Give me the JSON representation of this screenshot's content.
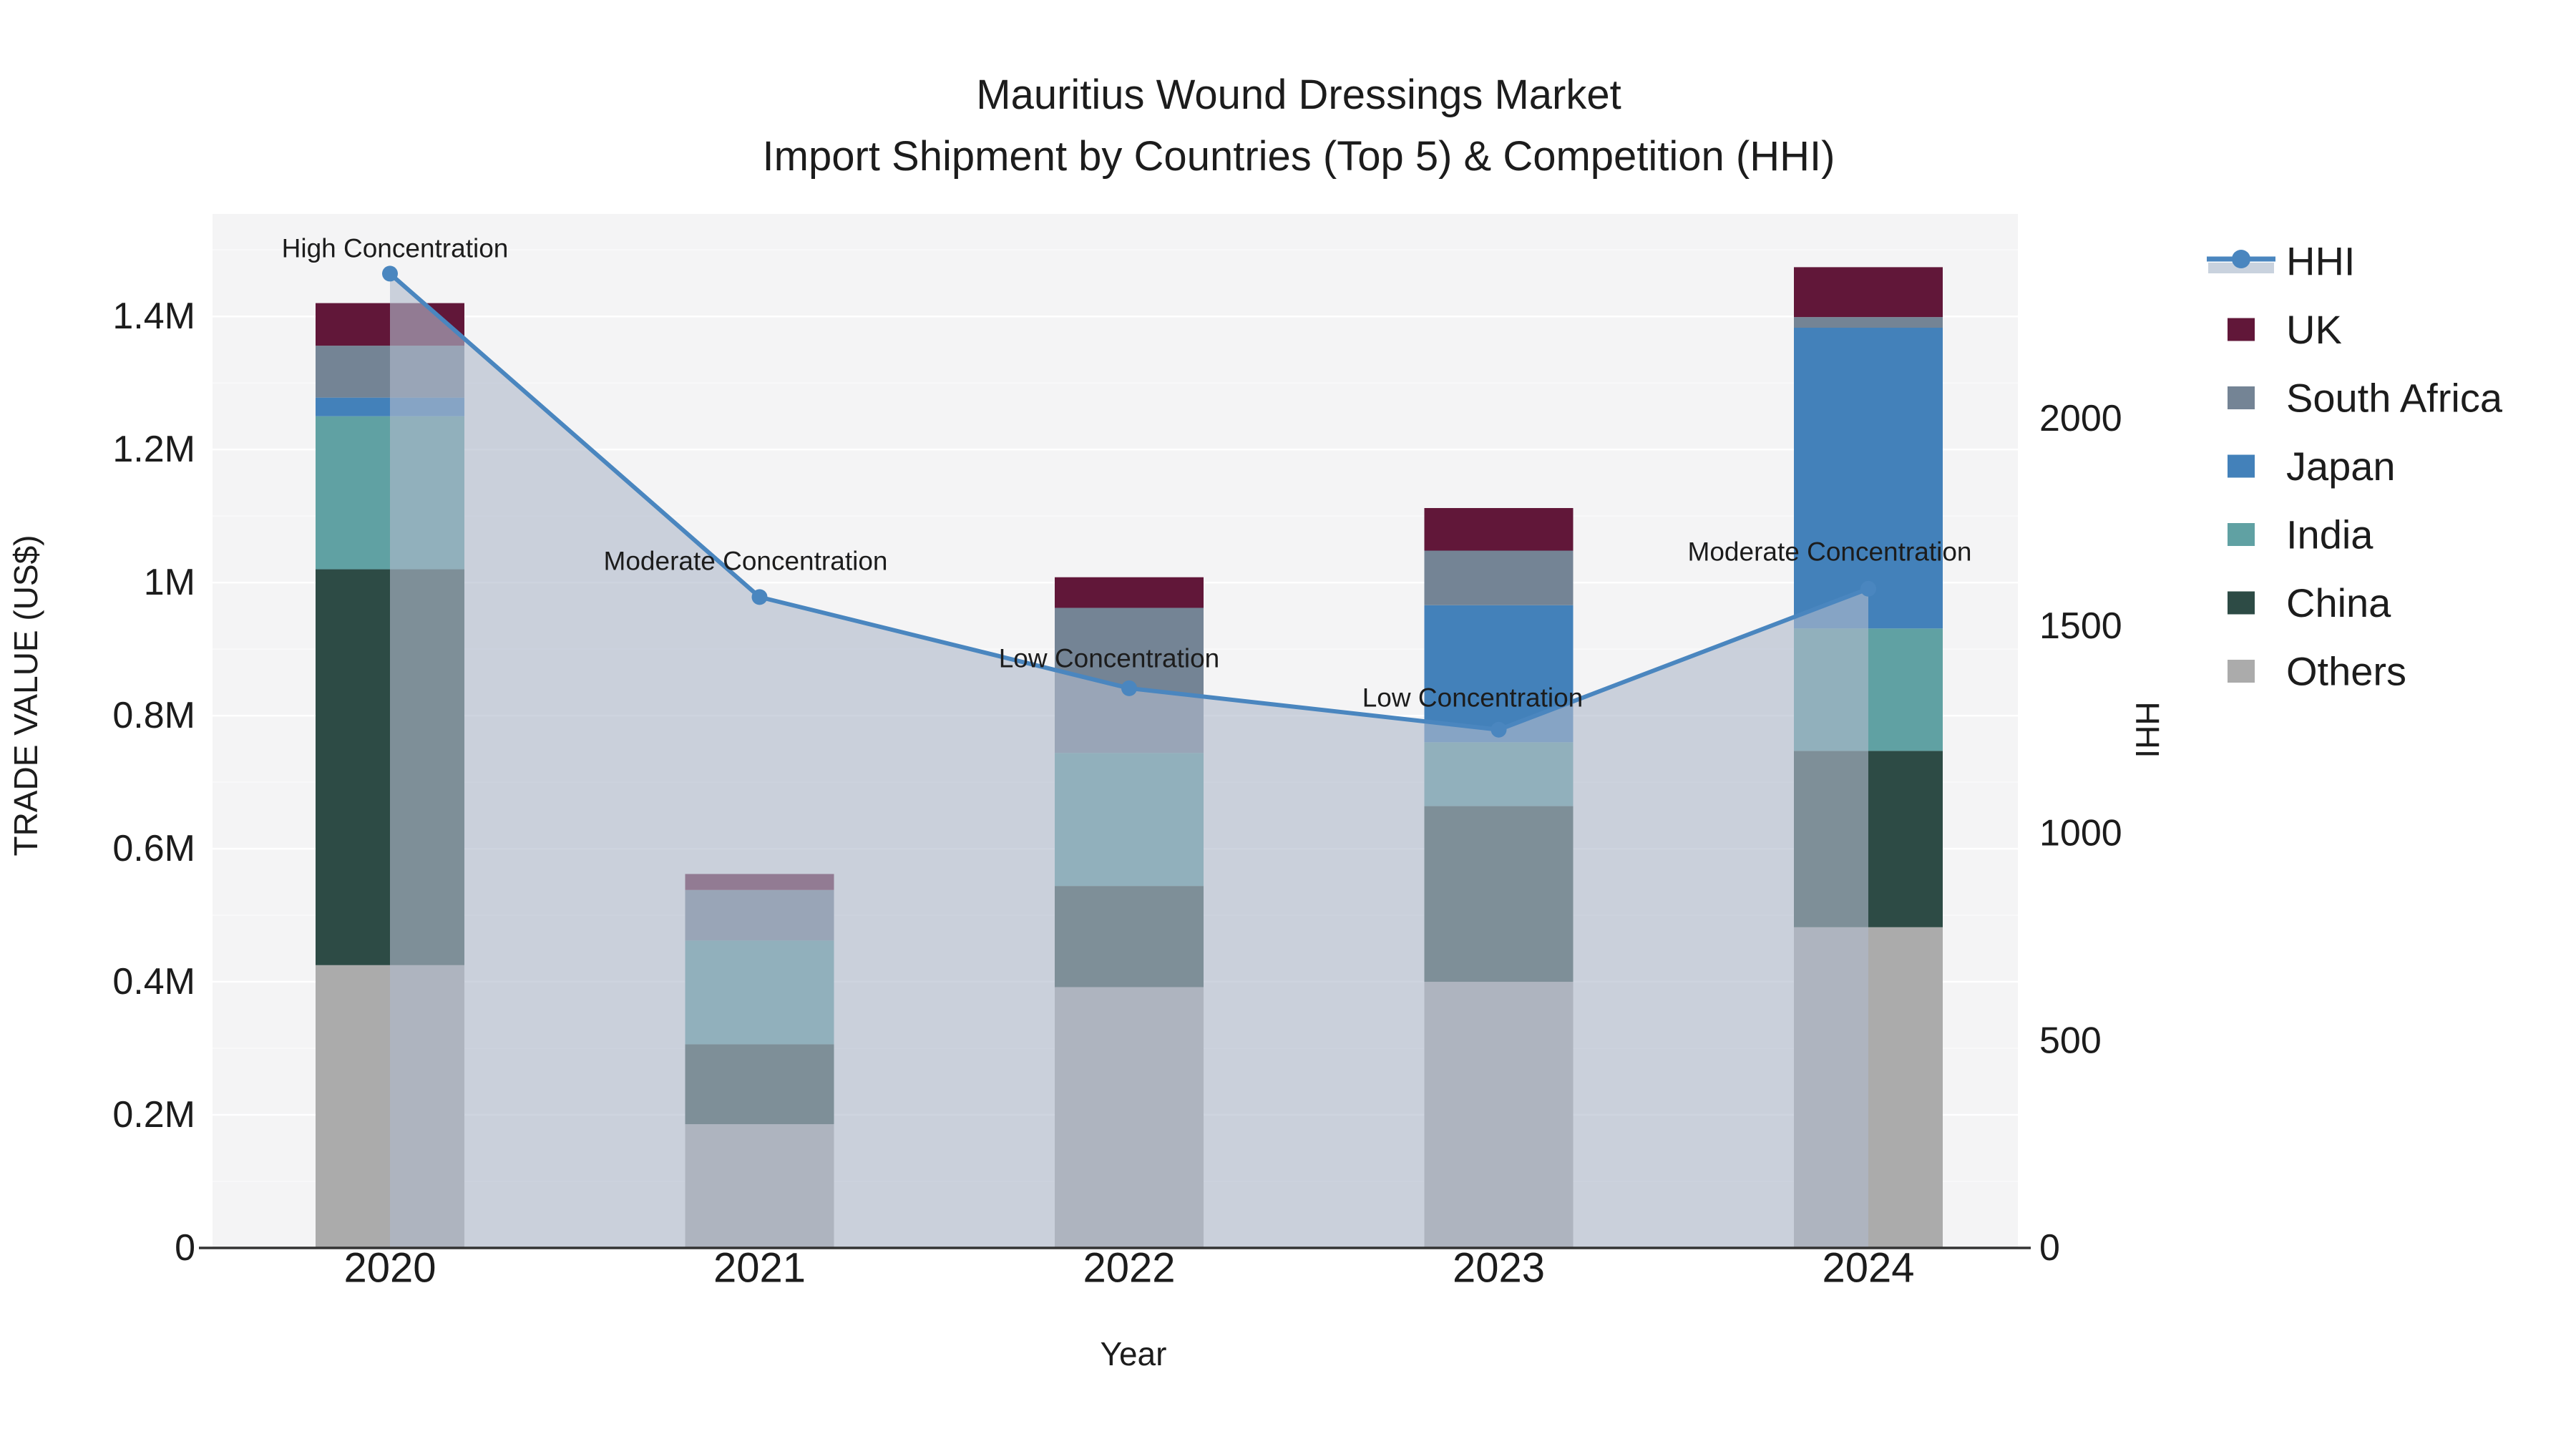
{
  "title": {
    "line1": "Mauritius Wound Dressings Market",
    "line2": "Import Shipment by Countries (Top 5) & Competition (HHI)"
  },
  "axes": {
    "y_left_label": "TRADE VALUE (US$)",
    "y_right_label": "HHI",
    "x_label": "Year"
  },
  "chart_data": {
    "type": "bar+line",
    "title": "Mauritius Wound Dressings Market — Import Shipment by Countries (Top 5) & Competition (HHI)",
    "categories": [
      "2020",
      "2021",
      "2022",
      "2023",
      "2024"
    ],
    "stacked_bar_unit": "US$ trade value",
    "series": [
      {
        "name": "Others",
        "color": "#ababab",
        "values": [
          425000,
          186000,
          392000,
          400000,
          482000
        ]
      },
      {
        "name": "China",
        "color": "#2d4b45",
        "values": [
          595000,
          120000,
          152000,
          264000,
          265000
        ]
      },
      {
        "name": "India",
        "color": "#60a1a3",
        "values": [
          230000,
          156000,
          200000,
          96000,
          184000
        ]
      },
      {
        "name": "Japan",
        "color": "#4381ba",
        "values": [
          28000,
          0,
          0,
          206000,
          452000
        ]
      },
      {
        "name": "South Africa",
        "color": "#748495",
        "values": [
          78000,
          76000,
          218000,
          82000,
          16000
        ]
      },
      {
        "name": "UK",
        "color": "#611739",
        "values": [
          64000,
          24000,
          46000,
          64000,
          75000
        ]
      }
    ],
    "bar_totals": [
      1420000,
      562000,
      1008000,
      1112000,
      1474000
    ],
    "hhi_series": {
      "name": "HHI",
      "color": "#4a86bf",
      "area_color": "rgba(176,186,203,0.62)",
      "values": [
        2350,
        1570,
        1350,
        1250,
        1590
      ]
    },
    "y_left": {
      "ticks": [
        "0",
        "0.2M",
        "0.4M",
        "0.6M",
        "0.8M",
        "1M",
        "1.2M",
        "1.4M"
      ],
      "tick_values": [
        0,
        200000,
        400000,
        600000,
        800000,
        1000000,
        1200000,
        1400000
      ],
      "max": 1554000
    },
    "y_right": {
      "ticks": [
        "0",
        "500",
        "1000",
        "1500",
        "2000"
      ],
      "tick_values": [
        0,
        500,
        1000,
        1500,
        2000
      ],
      "max": 2494
    },
    "annotations": [
      {
        "text": "High Concentration",
        "x": 552,
        "y": 347
      },
      {
        "text": "Moderate Concentration",
        "x": 1042,
        "y": 784
      },
      {
        "text": "Low Concentration",
        "x": 1550,
        "y": 920
      },
      {
        "text": "Low Concentration",
        "x": 2058,
        "y": 975
      },
      {
        "text": "Moderate Concentration",
        "x": 2557,
        "y": 771
      }
    ],
    "legend": [
      {
        "label": "HHI",
        "type": "line",
        "color": "#4a86bf"
      },
      {
        "label": "UK",
        "type": "box",
        "color": "#611739"
      },
      {
        "label": "South Africa",
        "type": "box",
        "color": "#748495"
      },
      {
        "label": "Japan",
        "type": "box",
        "color": "#4381ba"
      },
      {
        "label": "India",
        "type": "box",
        "color": "#60a1a3"
      },
      {
        "label": "China",
        "type": "box",
        "color": "#2d4b45"
      },
      {
        "label": "Others",
        "type": "box",
        "color": "#ababab"
      }
    ],
    "layout_hints": {
      "plot_bg": "#f4f4f5",
      "grid_color": "#ffffff",
      "spine_color": "#333333",
      "legend_position": "right",
      "grid": "horizontal, major 0.2M / minor 0.1M"
    }
  }
}
